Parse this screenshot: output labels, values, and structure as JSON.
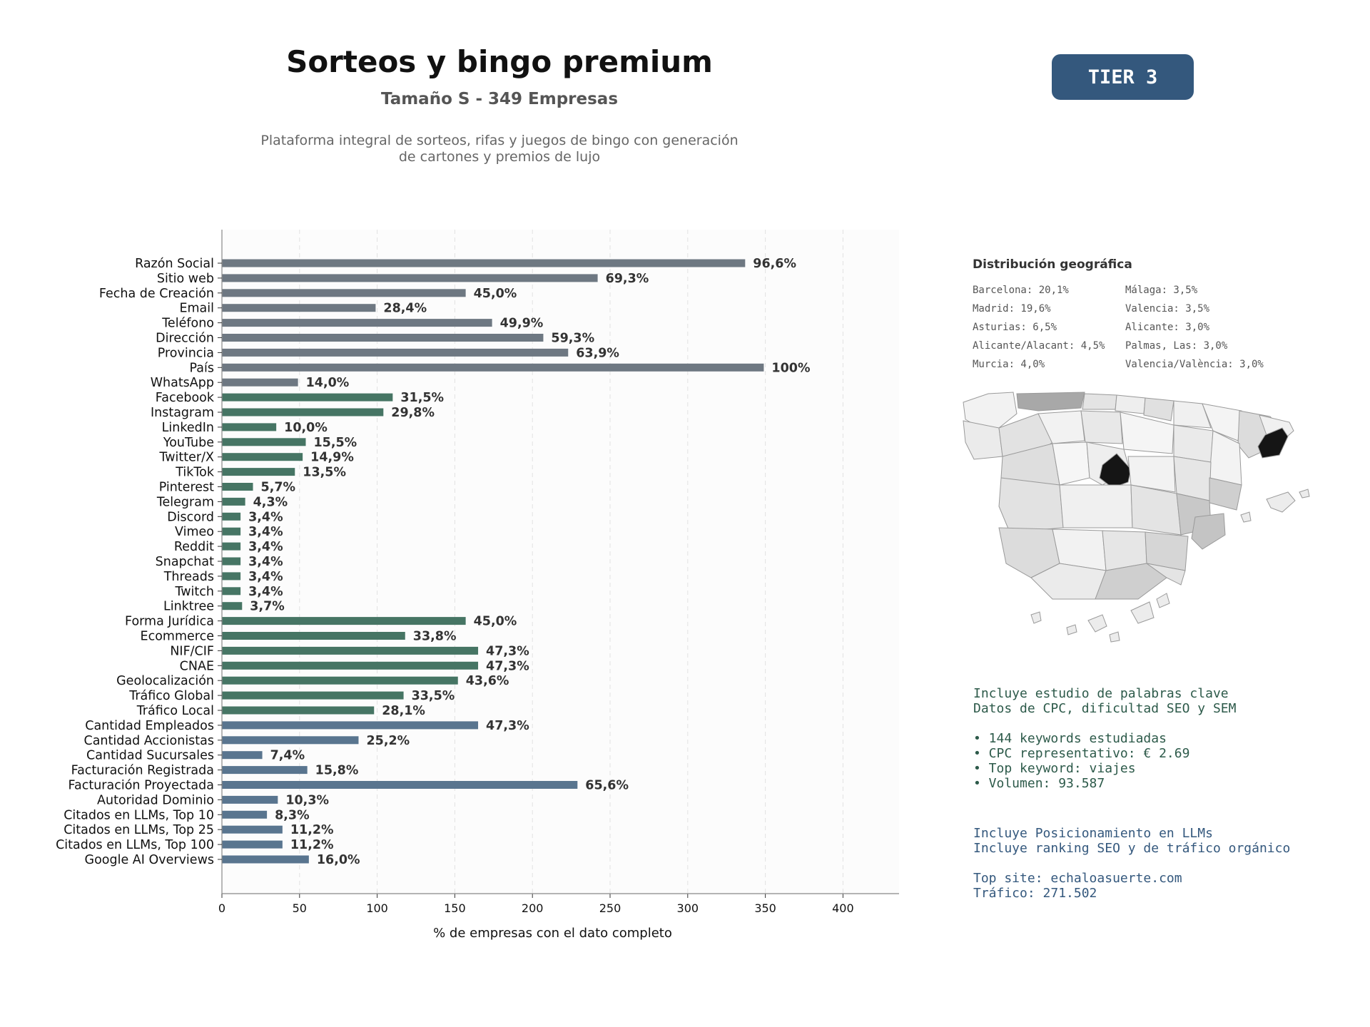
{
  "header": {
    "title": "Sorteos y bingo premium",
    "subtitle": "Tamaño S - 349 Empresas",
    "description_line1": "Plataforma integral de sorteos, rifas y juegos de bingo con generación",
    "description_line2": "de cartones y premios de lujo",
    "tier_label": "TIER 3"
  },
  "colors": {
    "gray": "#6e7882",
    "green": "#467564",
    "blue": "#59758f",
    "badge": "#34587d"
  },
  "chart_data": {
    "type": "bar",
    "orientation": "horizontal",
    "xlabel": "% de empresas con el dato completo",
    "xlim": [
      0,
      435
    ],
    "xticks": [
      0,
      50,
      100,
      150,
      200,
      250,
      300,
      350,
      400
    ],
    "grid": "vertical dashed",
    "categories": [
      "Razón Social",
      "Sitio web",
      "Fecha de Creación",
      "Email",
      "Teléfono",
      "Dirección",
      "Provincia",
      "País",
      "WhatsApp",
      "Facebook",
      "Instagram",
      "LinkedIn",
      "YouTube",
      "Twitter/X",
      "TikTok",
      "Pinterest",
      "Telegram",
      "Discord",
      "Vimeo",
      "Reddit",
      "Snapchat",
      "Threads",
      "Twitch",
      "Linktree",
      "Forma Jurídica",
      "Ecommerce",
      "NIF/CIF",
      "CNAE",
      "Geolocalización",
      "Tráfico Global",
      "Tráfico Local",
      "Cantidad Empleados",
      "Cantidad Accionistas",
      "Cantidad Sucursales",
      "Facturación Registrada",
      "Facturación Proyectada",
      "Autoridad Dominio",
      "Citados en LLMs, Top 10",
      "Citados en LLMs, Top 25",
      "Citados en LLMs, Top 100",
      "Google AI Overviews"
    ],
    "values": [
      337,
      242,
      157,
      99,
      174,
      207,
      223,
      349,
      49,
      110,
      104,
      35,
      54,
      52,
      47,
      20,
      15,
      12,
      12,
      12,
      12,
      12,
      12,
      13,
      157,
      118,
      165,
      165,
      152,
      117,
      98,
      165,
      88,
      26,
      55,
      229,
      36,
      29,
      39,
      39,
      56
    ],
    "labels": [
      "96,6%",
      "69,3%",
      "45,0%",
      "28,4%",
      "49,9%",
      "59,3%",
      "63,9%",
      "100%",
      "14,0%",
      "31,5%",
      "29,8%",
      "10,0%",
      "15,5%",
      "14,9%",
      "13,5%",
      "5,7%",
      "4,3%",
      "3,4%",
      "3,4%",
      "3,4%",
      "3,4%",
      "3,4%",
      "3,4%",
      "3,7%",
      "45,0%",
      "33,8%",
      "47,3%",
      "47,3%",
      "43,6%",
      "33,5%",
      "28,1%",
      "47,3%",
      "25,2%",
      "7,4%",
      "15,8%",
      "65,6%",
      "10,3%",
      "8,3%",
      "11,2%",
      "11,2%",
      "16,0%"
    ],
    "groups": [
      "gray",
      "gray",
      "gray",
      "gray",
      "gray",
      "gray",
      "gray",
      "gray",
      "gray",
      "green",
      "green",
      "green",
      "green",
      "green",
      "green",
      "green",
      "green",
      "green",
      "green",
      "green",
      "green",
      "green",
      "green",
      "green",
      "green",
      "green",
      "green",
      "green",
      "green",
      "green",
      "green",
      "blue",
      "blue",
      "blue",
      "blue",
      "blue",
      "blue",
      "blue",
      "blue",
      "blue",
      "blue"
    ]
  },
  "geo": {
    "title": "Distribución geográfica",
    "items": [
      "Barcelona: 20,1%",
      "Málaga: 3,5%",
      "Madrid: 19,6%",
      "Valencia: 3,5%",
      "Asturias: 6,5%",
      "Alicante: 3,0%",
      "Alicante/Alacant: 4,5%",
      "Palmas, Las: 3,0%",
      "Murcia: 4,0%",
      "Valencia/València: 3,0%"
    ]
  },
  "seo_info": {
    "lines": [
      "Incluye estudio de palabras clave",
      "Datos de CPC, dificultad SEO y SEM",
      "",
      "• 144 keywords estudiadas",
      "• CPC representativo: € 2.69",
      "• Top keyword: viajes",
      "• Volumen: 93.587"
    ]
  },
  "llm_info": {
    "lines": [
      "Incluye Posicionamiento en LLMs",
      "Incluye ranking SEO y de tráfico orgánico",
      "",
      "Top site: echaloasuerte.com",
      "Tráfico: 271.502"
    ]
  }
}
